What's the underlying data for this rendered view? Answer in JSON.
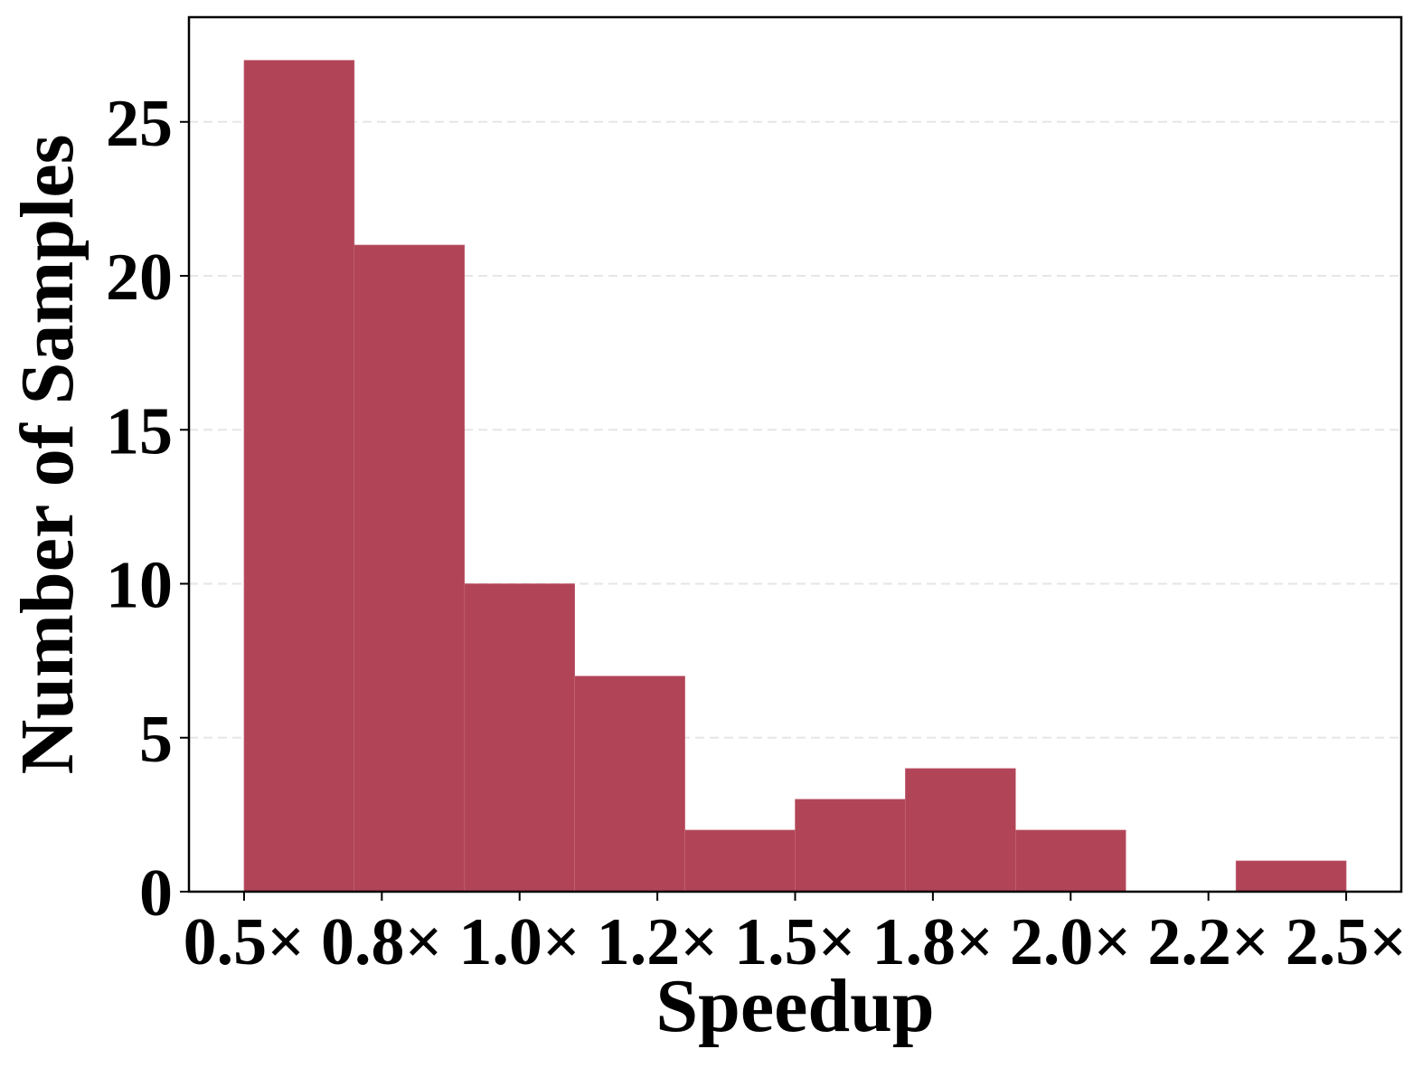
{
  "chart_data": {
    "type": "bar",
    "title": "",
    "xlabel": "Speedup",
    "ylabel": "Number of Samples",
    "bin_edges": [
      0.5,
      0.7,
      0.9,
      1.1,
      1.3,
      1.5,
      1.7,
      1.9,
      2.1,
      2.3,
      2.5
    ],
    "values": [
      27,
      21,
      10,
      7,
      2,
      3,
      4,
      2,
      0,
      1
    ],
    "x_ticks": [
      0.5,
      0.75,
      1.0,
      1.25,
      1.5,
      1.75,
      2.0,
      2.25,
      2.5
    ],
    "x_tick_labels": [
      "0.5×",
      "0.8×",
      "1.0×",
      "1.2×",
      "1.5×",
      "1.8×",
      "2.0×",
      "2.2×",
      "2.5×"
    ],
    "y_ticks": [
      0,
      5,
      10,
      15,
      20,
      25
    ],
    "y_tick_labels": [
      "0",
      "5",
      "10",
      "15",
      "20",
      "25"
    ],
    "xlim": [
      0.4,
      2.6
    ],
    "ylim": [
      0,
      28.4
    ],
    "grid": "horizontal dashed",
    "bar_color": "#b14457",
    "grid_color": "#e6e6e6"
  }
}
